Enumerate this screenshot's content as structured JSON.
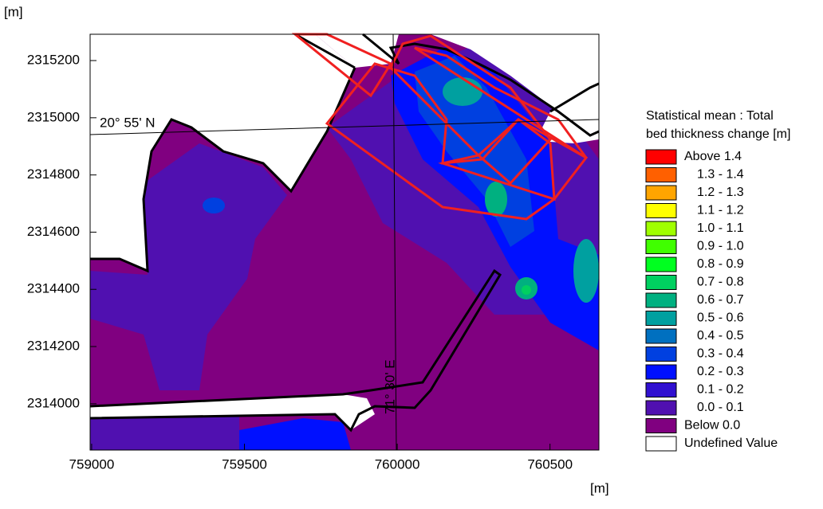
{
  "chart_data": {
    "type": "contour-map",
    "ylabel": "[m]",
    "xlabel": "[m]",
    "xlim": [
      758995,
      760660
    ],
    "ylim": [
      2313838,
      2315292
    ],
    "xticks": [
      759000,
      759500,
      760000,
      760500
    ],
    "yticks": [
      2314000,
      2314200,
      2314400,
      2314600,
      2314800,
      2315000,
      2315200
    ],
    "annotations": [
      "20° 55' N",
      "71° 30' E"
    ],
    "legend_title": [
      "Statistical mean : Total",
      "bed thickness change [m]"
    ],
    "legend": [
      {
        "name": "Above 1.4",
        "color": "#ff0000"
      },
      {
        "name": "1.3 - 1.4",
        "color": "#ff6000"
      },
      {
        "name": "1.2 - 1.3",
        "color": "#ffa500"
      },
      {
        "name": "1.1 - 1.2",
        "color": "#ffff00"
      },
      {
        "name": "1.0 - 1.1",
        "color": "#a0ff00"
      },
      {
        "name": "0.9 - 1.0",
        "color": "#40ff00"
      },
      {
        "name": "0.8 - 0.9",
        "color": "#00ff20"
      },
      {
        "name": "0.7 - 0.8",
        "color": "#00d060"
      },
      {
        "name": "0.6 - 0.7",
        "color": "#00b080"
      },
      {
        "name": "0.5 - 0.6",
        "color": "#00a0a0"
      },
      {
        "name": "0.4 - 0.5",
        "color": "#0070c0"
      },
      {
        "name": "0.3 - 0.4",
        "color": "#0040e0"
      },
      {
        "name": "0.2 - 0.3",
        "color": "#0010ff"
      },
      {
        "name": "0.1 - 0.2",
        "color": "#3010d0"
      },
      {
        "name": "0.0 - 0.1",
        "color": "#5010b0"
      },
      {
        "name": "Below 0.0",
        "color": "#800080"
      },
      {
        "name": "Undefined Value",
        "color": "#ffffff"
      }
    ]
  }
}
